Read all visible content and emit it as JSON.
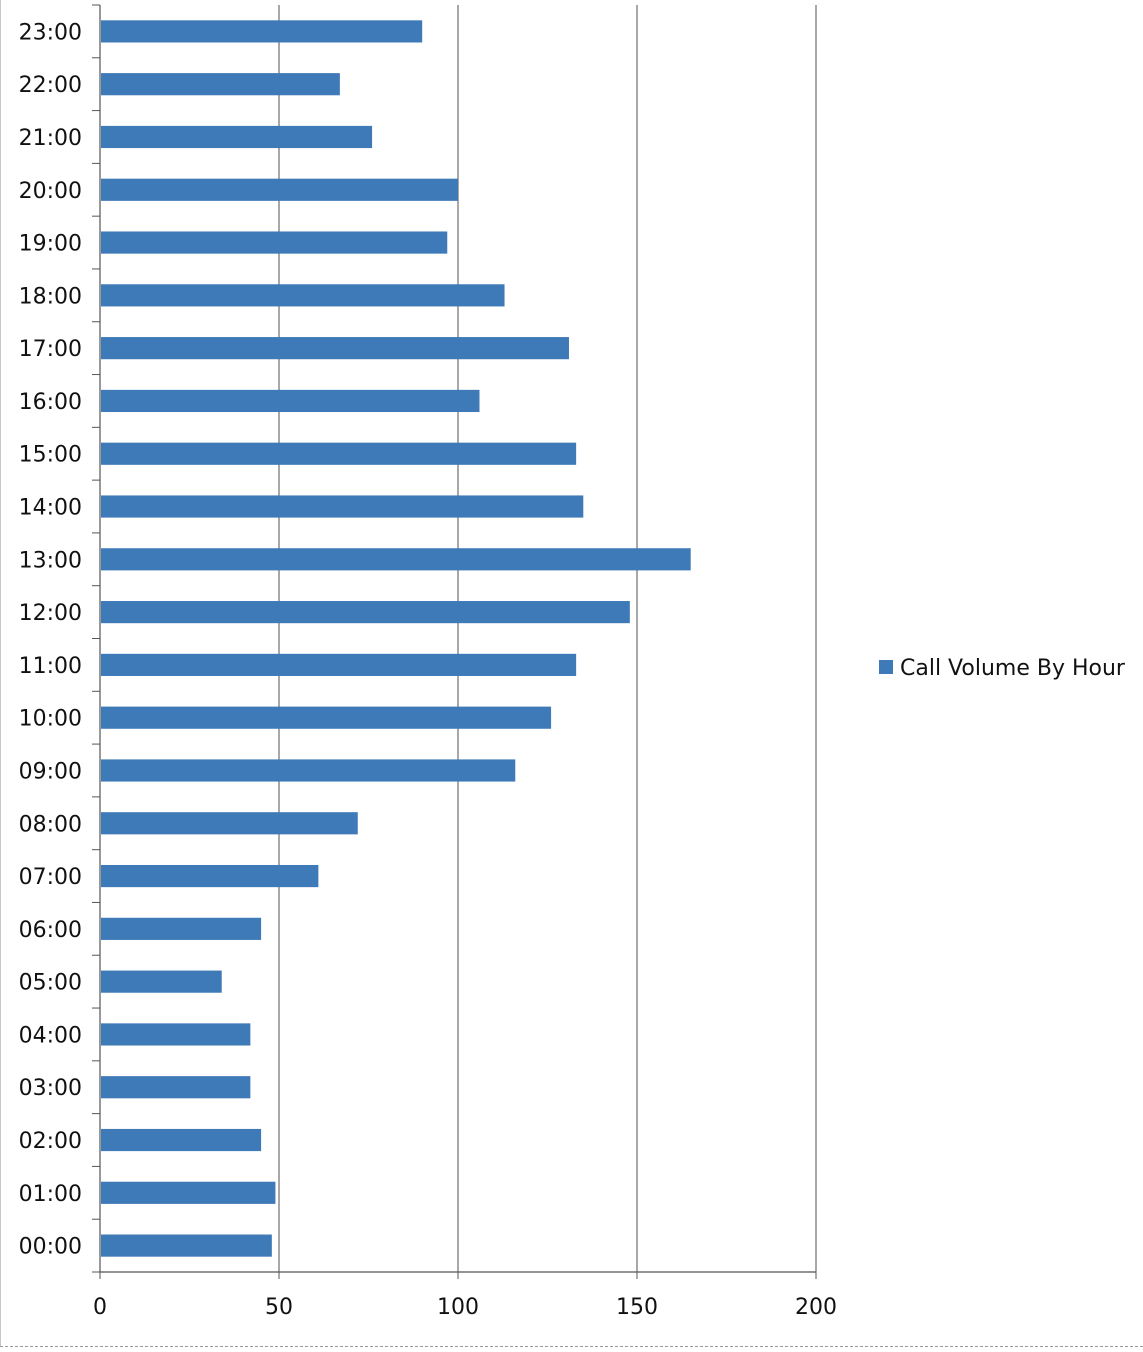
{
  "chart_data": {
    "type": "bar",
    "orientation": "horizontal",
    "title": "",
    "xlabel": "",
    "ylabel": "",
    "categories": [
      "00:00",
      "01:00",
      "02:00",
      "03:00",
      "04:00",
      "05:00",
      "06:00",
      "07:00",
      "08:00",
      "09:00",
      "10:00",
      "11:00",
      "12:00",
      "13:00",
      "14:00",
      "15:00",
      "16:00",
      "17:00",
      "18:00",
      "19:00",
      "20:00",
      "21:00",
      "22:00",
      "23:00"
    ],
    "series": [
      {
        "name": "Call Volume By Hour",
        "color": "#3f7ab8",
        "values": [
          48,
          49,
          45,
          42,
          42,
          34,
          45,
          61,
          72,
          116,
          126,
          133,
          148,
          165,
          135,
          133,
          106,
          131,
          113,
          97,
          100,
          76,
          67,
          90
        ]
      }
    ],
    "xlim": [
      0,
      200
    ],
    "xticks": [
      0,
      50,
      100,
      150,
      200
    ],
    "grid": "vertical",
    "legend": {
      "position": "right",
      "entries": [
        "Call Volume By Hour"
      ]
    }
  }
}
